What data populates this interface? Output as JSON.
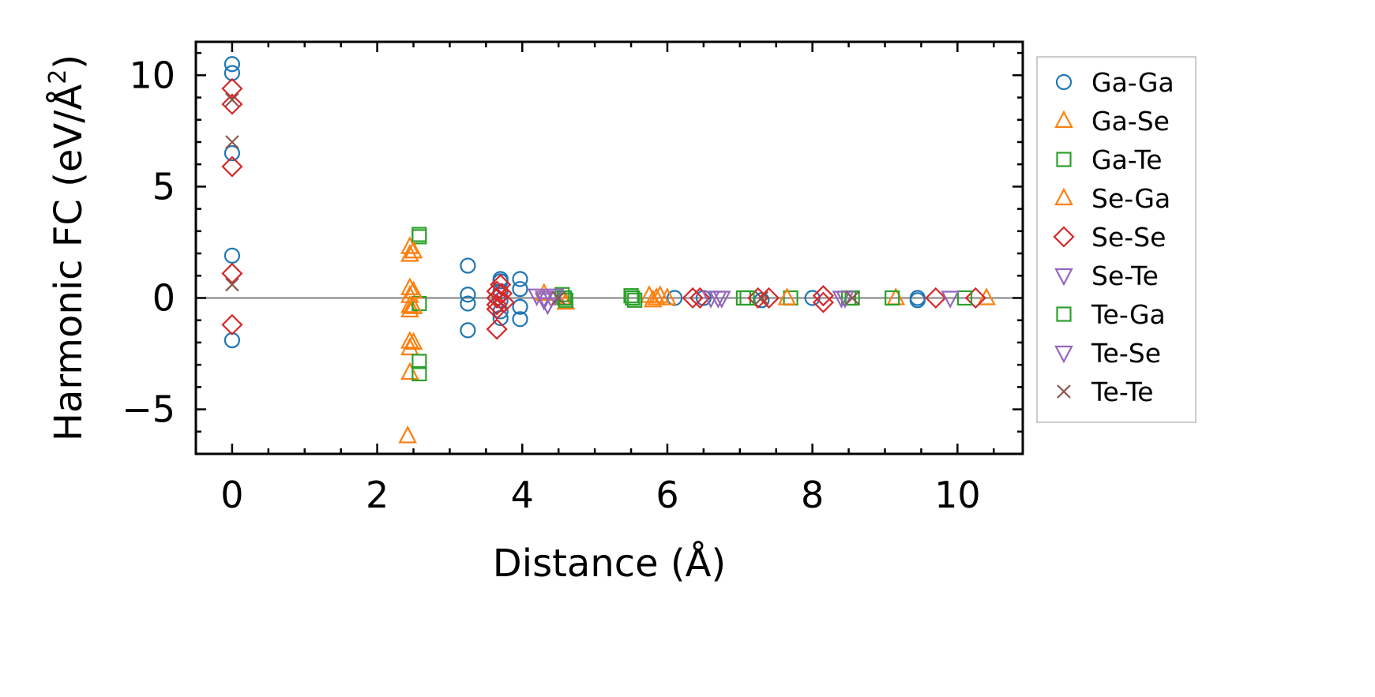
{
  "chart_data": {
    "type": "scatter",
    "xlabel": "Distance (Å)",
    "ylabel": {
      "main": "Harmonic FC (eV/Å",
      "sup": "2",
      "close": ")"
    },
    "xlim": [
      -0.5,
      10.9
    ],
    "ylim": [
      -7.0,
      11.5
    ],
    "x_ticks": [
      0,
      2,
      4,
      6,
      8,
      10
    ],
    "y_ticks": [
      -5,
      0,
      5,
      10
    ],
    "x_minor_step": 0.5,
    "y_minor_step": 1,
    "zero_line": true,
    "grid": false,
    "legend_position": "outside-right",
    "series": [
      {
        "name": "Ga-Ga",
        "marker": "circle",
        "color": "#1f77b4",
        "points": [
          [
            0,
            10.5
          ],
          [
            0,
            10.1
          ],
          [
            0,
            6.5
          ],
          [
            0,
            1.9
          ],
          [
            0,
            -1.9
          ],
          [
            3.25,
            1.45
          ],
          [
            3.25,
            0.15
          ],
          [
            3.25,
            -0.25
          ],
          [
            3.25,
            -1.45
          ],
          [
            3.7,
            0.85
          ],
          [
            3.7,
            0.75
          ],
          [
            3.7,
            0.3
          ],
          [
            3.7,
            -0.1
          ],
          [
            3.7,
            -0.6
          ],
          [
            3.7,
            -0.9
          ],
          [
            3.97,
            0.85
          ],
          [
            3.97,
            0.4
          ],
          [
            3.97,
            -0.4
          ],
          [
            3.97,
            -0.95
          ],
          [
            6.1,
            0.0
          ],
          [
            6.5,
            0.0
          ],
          [
            7.3,
            -0.1
          ],
          [
            8.0,
            0.0
          ],
          [
            9.45,
            0.0
          ],
          [
            9.45,
            -0.1
          ]
        ]
      },
      {
        "name": "Ga-Se",
        "marker": "triangle-up",
        "color": "#ff7f0e",
        "points": [
          [
            2.45,
            2.3
          ],
          [
            2.45,
            1.95
          ],
          [
            2.45,
            0.45
          ],
          [
            2.45,
            0.1
          ],
          [
            2.45,
            -0.35
          ],
          [
            2.45,
            -0.55
          ],
          [
            2.45,
            -1.95
          ],
          [
            2.45,
            -2.25
          ],
          [
            2.45,
            -3.35
          ],
          [
            2.42,
            -6.2
          ],
          [
            4.3,
            0.2
          ],
          [
            4.55,
            0.0
          ],
          [
            4.6,
            -0.2
          ],
          [
            5.75,
            0.1
          ],
          [
            5.8,
            -0.1
          ],
          [
            5.9,
            0.1
          ],
          [
            6.0,
            0.0
          ]
        ]
      },
      {
        "name": "Ga-Te",
        "marker": "square",
        "color": "#2ca02c",
        "points": [
          [
            2.58,
            2.85
          ],
          [
            2.58,
            2.75
          ],
          [
            2.58,
            -0.25
          ],
          [
            2.58,
            -2.85
          ],
          [
            2.58,
            -3.4
          ],
          [
            4.55,
            0.15
          ],
          [
            4.6,
            -0.1
          ],
          [
            5.5,
            0.1
          ],
          [
            5.55,
            -0.1
          ],
          [
            7.05,
            0.0
          ],
          [
            7.7,
            0.0
          ],
          [
            8.5,
            0.0
          ]
        ]
      },
      {
        "name": "Se-Ga",
        "marker": "triangle-up",
        "color": "#ff7f0e",
        "points": [
          [
            2.5,
            2.1
          ],
          [
            2.5,
            0.3
          ],
          [
            2.5,
            -0.4
          ],
          [
            2.5,
            -2.0
          ],
          [
            5.85,
            0.0
          ],
          [
            7.65,
            0.0
          ],
          [
            9.15,
            0.0
          ],
          [
            10.4,
            0.0
          ]
        ]
      },
      {
        "name": "Se-Se",
        "marker": "diamond",
        "color": "#d62728",
        "points": [
          [
            0,
            9.4
          ],
          [
            0,
            8.7
          ],
          [
            0,
            5.9
          ],
          [
            0,
            1.1
          ],
          [
            0,
            -1.2
          ],
          [
            3.65,
            0.3
          ],
          [
            3.65,
            0.0
          ],
          [
            3.65,
            -0.3
          ],
          [
            3.65,
            -0.5
          ],
          [
            3.65,
            -1.4
          ],
          [
            3.7,
            0.6
          ],
          [
            3.72,
            0.2
          ],
          [
            3.75,
            -0.2
          ],
          [
            6.35,
            0.0
          ],
          [
            6.45,
            0.0
          ],
          [
            7.25,
            0.0
          ],
          [
            7.4,
            0.0
          ],
          [
            8.15,
            -0.2
          ],
          [
            8.15,
            0.1
          ],
          [
            9.7,
            0.0
          ],
          [
            10.25,
            0.0
          ]
        ]
      },
      {
        "name": "Se-Te",
        "marker": "triangle-down",
        "color": "#9467bd",
        "points": [
          [
            4.2,
            0.1
          ],
          [
            4.3,
            -0.1
          ],
          [
            4.35,
            -0.3
          ],
          [
            4.4,
            0.0
          ],
          [
            6.6,
            0.0
          ],
          [
            6.75,
            0.0
          ],
          [
            8.4,
            0.0
          ]
        ]
      },
      {
        "name": "Te-Ga",
        "marker": "square",
        "color": "#2ca02c",
        "points": [
          [
            4.58,
            0.0
          ],
          [
            5.52,
            0.0
          ],
          [
            7.1,
            0.0
          ],
          [
            8.55,
            0.0
          ],
          [
            9.1,
            0.0
          ],
          [
            10.1,
            0.0
          ]
        ]
      },
      {
        "name": "Te-Se",
        "marker": "triangle-down",
        "color": "#9467bd",
        "points": [
          [
            4.3,
            0.0
          ],
          [
            4.45,
            0.1
          ],
          [
            6.7,
            0.0
          ],
          [
            8.45,
            0.0
          ],
          [
            9.9,
            0.0
          ]
        ]
      },
      {
        "name": "Te-Te",
        "marker": "x",
        "color": "#8c564b",
        "points": [
          [
            0,
            8.9
          ],
          [
            0,
            7.0
          ],
          [
            0,
            0.6
          ],
          [
            4.5,
            0.0
          ],
          [
            7.3,
            0.0
          ],
          [
            8.55,
            0.0
          ]
        ]
      }
    ]
  }
}
